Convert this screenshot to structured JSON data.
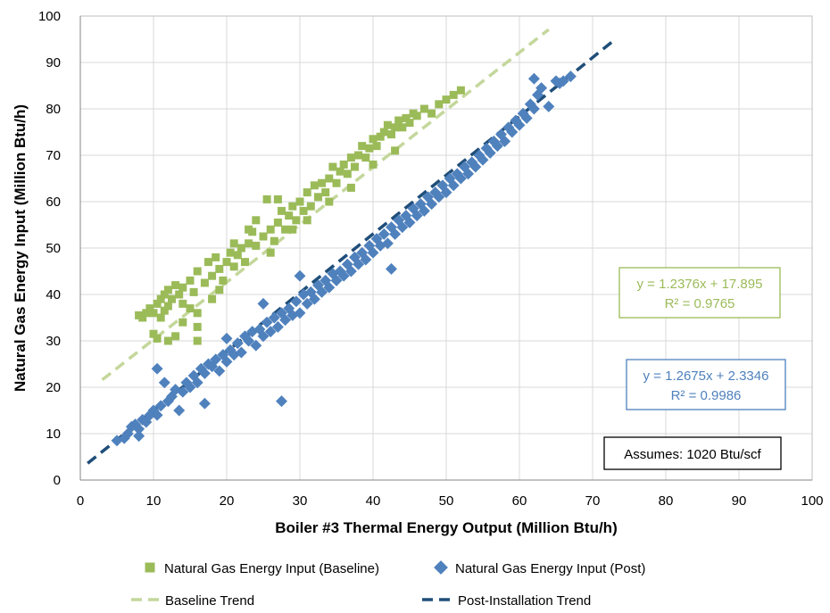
{
  "chart_data": {
    "type": "scatter",
    "xlabel": "Boiler #3 Thermal Energy Output (Million Btu/h)",
    "ylabel": "Natural Gas Energy Input (Million Btu/h)",
    "xlim": [
      0,
      100
    ],
    "ylim": [
      0,
      100
    ],
    "xticks": [
      0,
      10,
      20,
      30,
      40,
      50,
      60,
      70,
      80,
      90,
      100
    ],
    "yticks": [
      0,
      10,
      20,
      30,
      40,
      50,
      60,
      70,
      80,
      90,
      100
    ],
    "grid": true,
    "legend_position": "bottom",
    "series": [
      {
        "name": "Natural Gas Energy Input (Baseline)",
        "marker": "square",
        "color": "#9bbb59",
        "points": [
          [
            8,
            35.5
          ],
          [
            8.5,
            35
          ],
          [
            9,
            36
          ],
          [
            9.5,
            37
          ],
          [
            10,
            31.5
          ],
          [
            10,
            36
          ],
          [
            10.5,
            38
          ],
          [
            10.5,
            30.5
          ],
          [
            11,
            39
          ],
          [
            11,
            35
          ],
          [
            11.5,
            40
          ],
          [
            11.5,
            36.5
          ],
          [
            12,
            41
          ],
          [
            12,
            37.5
          ],
          [
            12,
            30
          ],
          [
            12.5,
            39
          ],
          [
            13,
            42
          ],
          [
            13,
            31
          ],
          [
            13.5,
            40
          ],
          [
            14,
            41.5
          ],
          [
            14,
            38
          ],
          [
            15,
            37
          ],
          [
            15,
            43
          ],
          [
            15.5,
            40.5
          ],
          [
            16,
            45
          ],
          [
            16,
            33
          ],
          [
            16,
            30
          ],
          [
            17,
            42.5
          ],
          [
            17.5,
            47
          ],
          [
            18,
            44
          ],
          [
            18.5,
            48
          ],
          [
            19,
            45.5
          ],
          [
            19.5,
            43
          ],
          [
            20,
            47
          ],
          [
            20.5,
            49
          ],
          [
            21,
            46
          ],
          [
            21.5,
            48.5
          ],
          [
            22,
            50
          ],
          [
            22.5,
            47
          ],
          [
            23,
            51
          ],
          [
            23.5,
            53.5
          ],
          [
            24,
            50.5
          ],
          [
            24,
            56
          ],
          [
            25,
            52.5
          ],
          [
            25.5,
            60.5
          ],
          [
            26,
            54
          ],
          [
            26.5,
            51.5
          ],
          [
            27,
            55.5
          ],
          [
            27.5,
            58
          ],
          [
            28,
            54
          ],
          [
            28.5,
            57
          ],
          [
            29,
            59
          ],
          [
            29.5,
            56
          ],
          [
            30,
            60
          ],
          [
            30.5,
            58
          ],
          [
            31,
            62
          ],
          [
            31.5,
            59
          ],
          [
            32,
            63.5
          ],
          [
            32.5,
            61
          ],
          [
            33,
            64
          ],
          [
            33.5,
            62
          ],
          [
            34,
            65
          ],
          [
            34.5,
            67.5
          ],
          [
            35,
            64
          ],
          [
            35.5,
            66.5
          ],
          [
            36,
            68
          ],
          [
            36.5,
            66
          ],
          [
            37,
            69.5
          ],
          [
            37.5,
            67.5
          ],
          [
            38,
            70
          ],
          [
            38.5,
            72
          ],
          [
            39,
            69.5
          ],
          [
            39.5,
            71.5
          ],
          [
            40,
            73.5
          ],
          [
            40.5,
            72
          ],
          [
            41,
            74
          ],
          [
            41.5,
            75
          ],
          [
            42,
            76.5
          ],
          [
            42.5,
            74.5
          ],
          [
            43,
            76
          ],
          [
            43.5,
            77.5
          ],
          [
            44,
            76
          ],
          [
            44.5,
            78
          ],
          [
            45,
            77
          ],
          [
            45.5,
            79
          ],
          [
            46,
            78.5
          ],
          [
            47,
            80
          ],
          [
            48,
            79
          ],
          [
            49,
            81
          ],
          [
            50,
            82
          ],
          [
            51,
            83
          ],
          [
            52,
            84
          ],
          [
            19,
            41
          ],
          [
            21,
            51
          ],
          [
            23,
            54
          ],
          [
            26,
            49
          ],
          [
            29,
            54
          ],
          [
            31,
            56
          ],
          [
            34,
            60
          ],
          [
            37,
            63
          ],
          [
            40,
            68
          ],
          [
            43,
            71
          ],
          [
            14,
            34
          ],
          [
            16,
            36
          ],
          [
            18,
            39
          ],
          [
            27,
            60.5
          ]
        ]
      },
      {
        "name": "Natural Gas Energy Input (Post)",
        "marker": "diamond",
        "color": "#4f81bd",
        "points": [
          [
            5,
            8.5
          ],
          [
            6,
            9
          ],
          [
            6.5,
            10
          ],
          [
            7,
            11.5
          ],
          [
            7.5,
            12
          ],
          [
            8,
            11
          ],
          [
            8,
            9.5
          ],
          [
            8.5,
            13
          ],
          [
            9,
            12.5
          ],
          [
            9.5,
            14
          ],
          [
            10,
            15
          ],
          [
            10.5,
            24
          ],
          [
            10.5,
            14
          ],
          [
            11,
            16
          ],
          [
            11.5,
            21
          ],
          [
            12,
            17
          ],
          [
            12.5,
            18
          ],
          [
            13,
            19.5
          ],
          [
            13.5,
            15
          ],
          [
            14,
            19
          ],
          [
            14.5,
            21
          ],
          [
            15,
            20
          ],
          [
            15.5,
            22.5
          ],
          [
            16,
            21
          ],
          [
            16.5,
            24
          ],
          [
            17,
            23
          ],
          [
            17,
            16.5
          ],
          [
            17.5,
            25
          ],
          [
            18,
            24.5
          ],
          [
            18.5,
            26
          ],
          [
            19,
            23.5
          ],
          [
            19.5,
            27
          ],
          [
            20,
            25.5
          ],
          [
            20.5,
            28
          ],
          [
            21,
            27
          ],
          [
            21.5,
            29.5
          ],
          [
            22,
            27.5
          ],
          [
            22.5,
            31
          ],
          [
            23,
            30
          ],
          [
            23.5,
            32
          ],
          [
            24,
            29
          ],
          [
            24.5,
            32.5
          ],
          [
            25,
            31
          ],
          [
            25.5,
            34
          ],
          [
            26,
            32
          ],
          [
            26.5,
            35
          ],
          [
            27,
            33
          ],
          [
            27.5,
            36
          ],
          [
            27.5,
            17
          ],
          [
            28,
            34.5
          ],
          [
            28.5,
            37
          ],
          [
            29,
            35.5
          ],
          [
            29.5,
            38.5
          ],
          [
            30,
            36
          ],
          [
            30.5,
            40
          ],
          [
            31,
            38
          ],
          [
            31.5,
            40.5
          ],
          [
            32,
            39
          ],
          [
            32.5,
            42
          ],
          [
            33,
            40.5
          ],
          [
            33.5,
            43
          ],
          [
            34,
            41.5
          ],
          [
            34.5,
            44.5
          ],
          [
            35,
            43
          ],
          [
            35.5,
            45
          ],
          [
            36,
            44
          ],
          [
            36.5,
            46.5
          ],
          [
            37,
            45
          ],
          [
            37.5,
            48
          ],
          [
            38,
            46.5
          ],
          [
            38.5,
            49
          ],
          [
            39,
            47.5
          ],
          [
            39.5,
            50.5
          ],
          [
            40,
            49
          ],
          [
            40.5,
            52
          ],
          [
            41,
            50.5
          ],
          [
            41.5,
            53
          ],
          [
            42,
            51
          ],
          [
            42.5,
            54.5
          ],
          [
            42.5,
            45.5
          ],
          [
            43,
            53
          ],
          [
            43.5,
            56
          ],
          [
            44,
            54.5
          ],
          [
            44.5,
            57
          ],
          [
            45,
            55.5
          ],
          [
            45.5,
            58.5
          ],
          [
            46,
            57
          ],
          [
            46.5,
            59.5
          ],
          [
            47,
            58
          ],
          [
            47.5,
            61
          ],
          [
            48,
            59.5
          ],
          [
            48.5,
            62
          ],
          [
            49,
            61
          ],
          [
            49.5,
            63.5
          ],
          [
            50,
            62
          ],
          [
            50.5,
            65
          ],
          [
            51,
            63.5
          ],
          [
            51.5,
            66
          ],
          [
            52,
            65
          ],
          [
            52.5,
            67.5
          ],
          [
            53,
            66
          ],
          [
            53.5,
            68.5
          ],
          [
            54,
            67.5
          ],
          [
            54.5,
            70
          ],
          [
            55,
            69
          ],
          [
            55.5,
            71.5
          ],
          [
            56,
            70.5
          ],
          [
            56.5,
            73
          ],
          [
            57,
            72
          ],
          [
            57.5,
            74.5
          ],
          [
            58,
            73
          ],
          [
            58.5,
            76
          ],
          [
            59,
            75
          ],
          [
            59.5,
            77.5
          ],
          [
            60,
            76.5
          ],
          [
            60.5,
            79
          ],
          [
            61,
            78
          ],
          [
            61.5,
            81
          ],
          [
            62,
            80
          ],
          [
            62,
            86.5
          ],
          [
            62.5,
            83
          ],
          [
            63,
            84.5
          ],
          [
            64,
            80.5
          ],
          [
            65,
            86
          ],
          [
            65.5,
            85.5
          ],
          [
            66,
            86
          ],
          [
            67,
            87
          ],
          [
            20,
            30.5
          ],
          [
            25,
            38
          ],
          [
            30,
            44
          ]
        ]
      }
    ],
    "trendlines": [
      {
        "name": "Baseline Trend",
        "style": "dashed",
        "color": "#c4d79b",
        "slope": 1.2376,
        "intercept": 17.895,
        "x_range": [
          3,
          64
        ]
      },
      {
        "name": "Post-Installation Trend",
        "style": "dashed",
        "color": "#1f4e79",
        "slope": 1.2675,
        "intercept": 2.3346,
        "x_range": [
          1,
          73
        ]
      }
    ],
    "annotations": [
      {
        "line1": "y = 1.2376x + 17.895",
        "line2": "R² = 0.9765",
        "color": "#9bbb59"
      },
      {
        "line1": "y = 1.2675x + 2.3346",
        "line2": "R² = 0.9986",
        "color": "#4f81bd"
      },
      {
        "line1": "Assumes:  1020 Btu/scf",
        "color": "#000000"
      }
    ]
  }
}
